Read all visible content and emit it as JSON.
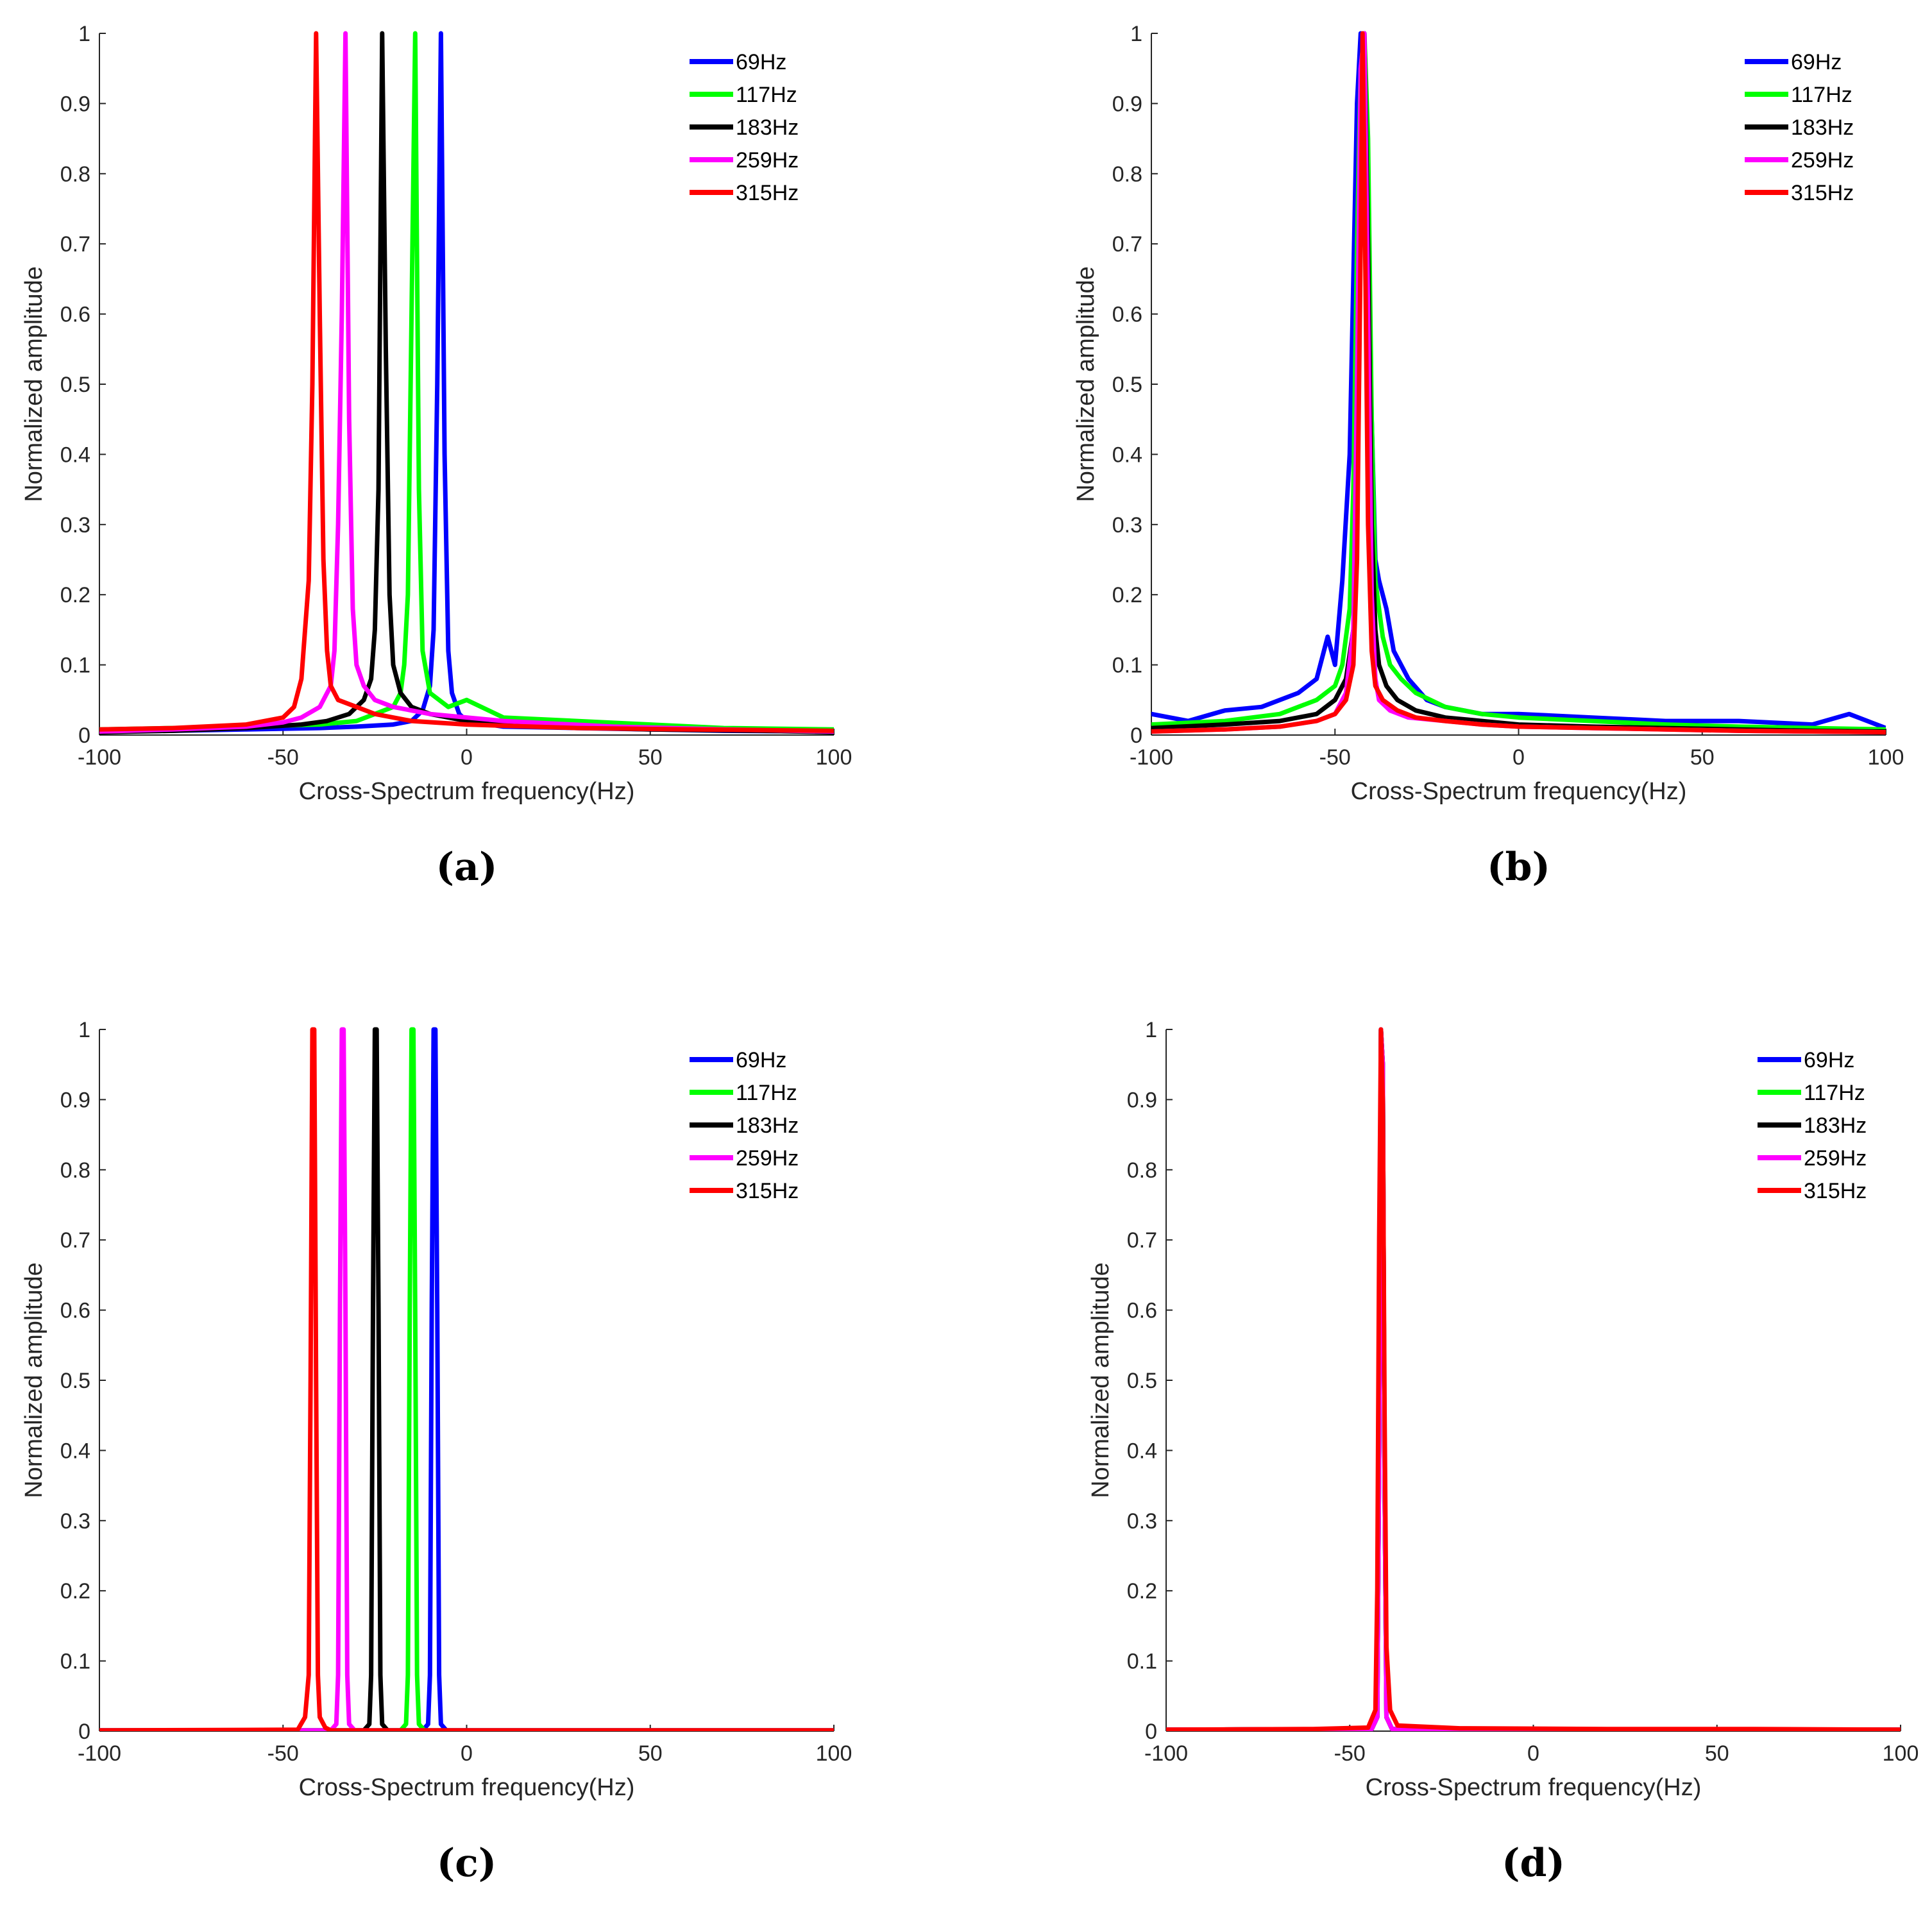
{
  "chart_data": [
    {
      "panel": "a",
      "caption": "(a)",
      "type": "line",
      "xlabel": "Cross-Spectrum frequency(Hz)",
      "ylabel": "Normalized amplitude",
      "xlim": [
        -100,
        100
      ],
      "ylim": [
        0,
        1
      ],
      "xticks": [
        -100,
        -50,
        0,
        50,
        100
      ],
      "xtick_labels": [
        "-100",
        "-50",
        "0",
        "50",
        "100"
      ],
      "yticks": [
        0,
        0.1,
        0.2,
        0.3,
        0.4,
        0.5,
        0.6,
        0.7,
        0.8,
        0.9,
        1
      ],
      "ytick_labels": [
        "0",
        "0.1",
        "0.2",
        "0.3",
        "0.4",
        "0.5",
        "0.6",
        "0.7",
        "0.8",
        "0.9",
        "1"
      ],
      "legend_position": "top-right",
      "series": [
        {
          "name": "69Hz",
          "color": "#0000ff",
          "x": [
            -100,
            -80,
            -60,
            -40,
            -30,
            -20,
            -15,
            -12,
            -10,
            -9,
            -8,
            -7,
            -6,
            -5,
            -4,
            -2,
            0,
            10,
            30,
            50,
            70,
            100
          ],
          "y": [
            0.005,
            0.006,
            0.008,
            0.01,
            0.012,
            0.015,
            0.02,
            0.035,
            0.07,
            0.15,
            0.5,
            1.0,
            0.4,
            0.12,
            0.06,
            0.03,
            0.02,
            0.012,
            0.01,
            0.008,
            0.006,
            0.005
          ]
        },
        {
          "name": "117Hz",
          "color": "#00ff00",
          "x": [
            -100,
            -80,
            -60,
            -40,
            -30,
            -25,
            -20,
            -18,
            -17,
            -16,
            -15,
            -14,
            -13,
            -12,
            -10,
            -5,
            0,
            10,
            30,
            50,
            70,
            100
          ],
          "y": [
            0.008,
            0.01,
            0.012,
            0.015,
            0.02,
            0.03,
            0.04,
            0.06,
            0.1,
            0.2,
            0.6,
            1.0,
            0.35,
            0.12,
            0.06,
            0.04,
            0.05,
            0.025,
            0.02,
            0.015,
            0.01,
            0.008
          ]
        },
        {
          "name": "183Hz",
          "color": "#000000",
          "x": [
            -100,
            -80,
            -60,
            -45,
            -38,
            -32,
            -28,
            -26,
            -25,
            -24,
            -23,
            -22,
            -21,
            -20,
            -18,
            -15,
            -10,
            0,
            20,
            50,
            80,
            100
          ],
          "y": [
            0.004,
            0.006,
            0.01,
            0.015,
            0.02,
            0.03,
            0.05,
            0.08,
            0.15,
            0.35,
            1.0,
            0.55,
            0.2,
            0.1,
            0.06,
            0.04,
            0.03,
            0.02,
            0.012,
            0.008,
            0.006,
            0.004
          ]
        },
        {
          "name": "259Hz",
          "color": "#ff00ff",
          "x": [
            -100,
            -80,
            -60,
            -50,
            -45,
            -40,
            -37,
            -36,
            -35,
            -34,
            -33,
            -32,
            -31,
            -30,
            -28,
            -25,
            -20,
            -10,
            10,
            40,
            70,
            100
          ],
          "y": [
            0.005,
            0.008,
            0.012,
            0.018,
            0.025,
            0.04,
            0.07,
            0.12,
            0.3,
            0.6,
            1.0,
            0.45,
            0.18,
            0.1,
            0.07,
            0.05,
            0.04,
            0.03,
            0.02,
            0.012,
            0.008,
            0.005
          ]
        },
        {
          "name": "315Hz",
          "color": "#ff0000",
          "x": [
            -100,
            -80,
            -60,
            -50,
            -47,
            -45,
            -44,
            -43,
            -42,
            -41,
            -40,
            -39,
            -38,
            -37,
            -35,
            -30,
            -25,
            -15,
            0,
            30,
            60,
            100
          ],
          "y": [
            0.008,
            0.01,
            0.015,
            0.025,
            0.04,
            0.08,
            0.15,
            0.22,
            0.5,
            1.0,
            0.6,
            0.25,
            0.12,
            0.07,
            0.05,
            0.04,
            0.03,
            0.02,
            0.015,
            0.01,
            0.008,
            0.006
          ]
        }
      ]
    },
    {
      "panel": "b",
      "caption": "(b)",
      "type": "line",
      "xlabel": "Cross-Spectrum frequency(Hz)",
      "ylabel": "Normalized amplitude",
      "xlim": [
        -100,
        100
      ],
      "ylim": [
        0,
        1
      ],
      "xticks": [
        -100,
        -50,
        0,
        50,
        100
      ],
      "xtick_labels": [
        "-100",
        "-50",
        "0",
        "50",
        "100"
      ],
      "yticks": [
        0,
        0.1,
        0.2,
        0.3,
        0.4,
        0.5,
        0.6,
        0.7,
        0.8,
        0.9,
        1
      ],
      "ytick_labels": [
        "0",
        "0.1",
        "0.2",
        "0.3",
        "0.4",
        "0.5",
        "0.6",
        "0.7",
        "0.8",
        "0.9",
        "1"
      ],
      "legend_position": "top-right",
      "series": [
        {
          "name": "69Hz",
          "color": "#0000ff",
          "x": [
            -100,
            -90,
            -80,
            -70,
            -60,
            -55,
            -52,
            -50,
            -48,
            -46,
            -45,
            -44,
            -43,
            -42,
            -41,
            -40,
            -39,
            -38,
            -36,
            -34,
            -32,
            -30,
            -25,
            -20,
            -10,
            0,
            20,
            40,
            60,
            80,
            90,
            100
          ],
          "y": [
            0.03,
            0.02,
            0.035,
            0.04,
            0.06,
            0.08,
            0.14,
            0.1,
            0.22,
            0.4,
            0.65,
            0.9,
            1.0,
            0.93,
            0.7,
            0.45,
            0.25,
            0.22,
            0.18,
            0.12,
            0.1,
            0.08,
            0.05,
            0.04,
            0.03,
            0.03,
            0.025,
            0.02,
            0.02,
            0.015,
            0.03,
            0.01
          ]
        },
        {
          "name": "117Hz",
          "color": "#00ff00",
          "x": [
            -100,
            -80,
            -65,
            -55,
            -50,
            -48,
            -46,
            -45,
            -44,
            -43,
            -42,
            -41,
            -40,
            -39,
            -38,
            -37,
            -35,
            -32,
            -28,
            -20,
            -10,
            0,
            20,
            40,
            60,
            80,
            100
          ],
          "y": [
            0.015,
            0.02,
            0.03,
            0.05,
            0.07,
            0.1,
            0.18,
            0.35,
            0.7,
            0.95,
            1.0,
            0.85,
            0.45,
            0.22,
            0.18,
            0.14,
            0.1,
            0.08,
            0.06,
            0.04,
            0.03,
            0.025,
            0.02,
            0.015,
            0.012,
            0.01,
            0.008
          ]
        },
        {
          "name": "183Hz",
          "color": "#000000",
          "x": [
            -100,
            -80,
            -65,
            -55,
            -50,
            -47,
            -45,
            -44,
            -43,
            -42,
            -41,
            -40,
            -39,
            -38,
            -36,
            -33,
            -28,
            -20,
            -10,
            0,
            20,
            40,
            60,
            80,
            100
          ],
          "y": [
            0.01,
            0.015,
            0.02,
            0.03,
            0.05,
            0.08,
            0.15,
            0.4,
            0.9,
            1.0,
            0.7,
            0.3,
            0.15,
            0.1,
            0.07,
            0.05,
            0.035,
            0.025,
            0.02,
            0.015,
            0.012,
            0.01,
            0.008,
            0.006,
            0.005
          ]
        },
        {
          "name": "259Hz",
          "color": "#ff00ff",
          "x": [
            -100,
            -80,
            -65,
            -55,
            -50,
            -47,
            -45,
            -44,
            -43,
            -42,
            -41,
            -40,
            -39,
            -38,
            -35,
            -30,
            -20,
            -10,
            0,
            20,
            40,
            60,
            80,
            100
          ],
          "y": [
            0.005,
            0.008,
            0.012,
            0.02,
            0.03,
            0.06,
            0.15,
            0.5,
            0.95,
            1.0,
            0.6,
            0.2,
            0.08,
            0.05,
            0.035,
            0.025,
            0.02,
            0.015,
            0.012,
            0.01,
            0.008,
            0.006,
            0.005,
            0.004
          ]
        },
        {
          "name": "315Hz",
          "color": "#ff0000",
          "x": [
            -100,
            -80,
            -65,
            -55,
            -50,
            -47,
            -45,
            -44,
            -43,
            -42.5,
            -42,
            -41,
            -40,
            -39,
            -37,
            -33,
            -28,
            -20,
            -10,
            0,
            20,
            40,
            60,
            80,
            100
          ],
          "y": [
            0.005,
            0.008,
            0.012,
            0.02,
            0.03,
            0.05,
            0.1,
            0.25,
            0.7,
            1.0,
            0.8,
            0.3,
            0.12,
            0.07,
            0.05,
            0.035,
            0.025,
            0.02,
            0.015,
            0.012,
            0.01,
            0.008,
            0.006,
            0.005,
            0.004
          ]
        }
      ]
    },
    {
      "panel": "c",
      "caption": "(c)",
      "type": "line",
      "xlabel": "Cross-Spectrum frequency(Hz)",
      "ylabel": "Normalized amplitude",
      "xlim": [
        -100,
        100
      ],
      "ylim": [
        0,
        1
      ],
      "xticks": [
        -100,
        -50,
        0,
        50,
        100
      ],
      "xtick_labels": [
        "-100",
        "-50",
        "0",
        "50",
        "100"
      ],
      "yticks": [
        0,
        0.1,
        0.2,
        0.3,
        0.4,
        0.5,
        0.6,
        0.7,
        0.8,
        0.9,
        1
      ],
      "ytick_labels": [
        "0",
        "0.1",
        "0.2",
        "0.3",
        "0.4",
        "0.5",
        "0.6",
        "0.7",
        "0.8",
        "0.9",
        "1"
      ],
      "legend_position": "top-right",
      "series": [
        {
          "name": "69Hz",
          "color": "#0000ff",
          "x": [
            -100,
            -12,
            -10.5,
            -10,
            -9.5,
            -9,
            -8.5,
            -8,
            -7.5,
            -7,
            -5.5,
            100
          ],
          "y": [
            0.001,
            0.001,
            0.01,
            0.08,
            0.6,
            1.0,
            1.0,
            0.6,
            0.08,
            0.01,
            0.001,
            0.001
          ]
        },
        {
          "name": "117Hz",
          "color": "#00ff00",
          "x": [
            -100,
            -18,
            -16.5,
            -16,
            -15.5,
            -15,
            -14.5,
            -14,
            -13.5,
            -13,
            -11.5,
            100
          ],
          "y": [
            0.001,
            0.001,
            0.01,
            0.08,
            0.6,
            1.0,
            1.0,
            0.6,
            0.08,
            0.01,
            0.001,
            0.001
          ]
        },
        {
          "name": "183Hz",
          "color": "#000000",
          "x": [
            -100,
            -28,
            -26.5,
            -26,
            -25.5,
            -25,
            -24.5,
            -24,
            -23.5,
            -23,
            -21.5,
            100
          ],
          "y": [
            0.001,
            0.001,
            0.01,
            0.08,
            0.6,
            1.0,
            1.0,
            0.6,
            0.08,
            0.01,
            0.001,
            0.001
          ]
        },
        {
          "name": "259Hz",
          "color": "#ff00ff",
          "x": [
            -100,
            -37,
            -35.5,
            -35,
            -34.5,
            -34,
            -33.5,
            -33,
            -32.5,
            -32,
            -30.5,
            100
          ],
          "y": [
            0.001,
            0.001,
            0.01,
            0.08,
            0.6,
            1.0,
            1.0,
            0.6,
            0.08,
            0.01,
            0.001,
            0.001
          ]
        },
        {
          "name": "315Hz",
          "color": "#ff0000",
          "x": [
            -100,
            -46,
            -44,
            -43,
            -42.5,
            -42,
            -41.5,
            -41,
            -40.5,
            -40,
            -38.5,
            -37,
            100
          ],
          "y": [
            0.001,
            0.002,
            0.02,
            0.08,
            0.5,
            1.0,
            1.0,
            0.5,
            0.08,
            0.02,
            0.005,
            0.001,
            0.001
          ]
        }
      ]
    },
    {
      "panel": "d",
      "caption": "(d)",
      "type": "line",
      "xlabel": "Cross-Spectrum frequency(Hz)",
      "ylabel": "Normalized amplitude",
      "xlim": [
        -100,
        100
      ],
      "ylim": [
        0,
        1
      ],
      "xticks": [
        -100,
        -50,
        0,
        50,
        100
      ],
      "xtick_labels": [
        "-100",
        "-50",
        "0",
        "50",
        "100"
      ],
      "yticks": [
        0,
        0.1,
        0.2,
        0.3,
        0.4,
        0.5,
        0.6,
        0.7,
        0.8,
        0.9,
        1
      ],
      "ytick_labels": [
        "0",
        "0.1",
        "0.2",
        "0.3",
        "0.4",
        "0.5",
        "0.6",
        "0.7",
        "0.8",
        "0.9",
        "1"
      ],
      "legend_position": "top-right",
      "series": [
        {
          "name": "69Hz",
          "color": "#0000ff",
          "x": [
            -100,
            -44,
            -42.5,
            -42,
            -41.5,
            -41,
            -40.5,
            -40,
            -38.5,
            100
          ],
          "y": [
            0.002,
            0.003,
            0.02,
            0.4,
            1.0,
            0.95,
            0.35,
            0.02,
            0.003,
            0.002
          ]
        },
        {
          "name": "117Hz",
          "color": "#00ff00",
          "x": [
            -100,
            -44,
            -42.5,
            -42,
            -41.5,
            -41,
            -40.5,
            -40,
            -38.5,
            100
          ],
          "y": [
            0.002,
            0.003,
            0.02,
            0.4,
            1.0,
            0.95,
            0.35,
            0.02,
            0.003,
            0.002
          ]
        },
        {
          "name": "183Hz",
          "color": "#000000",
          "x": [
            -100,
            -44,
            -42.5,
            -42,
            -41.5,
            -41,
            -40.5,
            -40,
            -38.5,
            100
          ],
          "y": [
            0.002,
            0.003,
            0.02,
            0.4,
            1.0,
            0.95,
            0.35,
            0.02,
            0.003,
            0.002
          ]
        },
        {
          "name": "259Hz",
          "color": "#ff00ff",
          "x": [
            -100,
            -44,
            -42.5,
            -42,
            -41.5,
            -41,
            -40.5,
            -40,
            -38.5,
            100
          ],
          "y": [
            0.002,
            0.003,
            0.02,
            0.4,
            1.0,
            0.95,
            0.35,
            0.02,
            0.003,
            0.002
          ]
        },
        {
          "name": "315Hz",
          "color": "#ff0000",
          "x": [
            -100,
            -60,
            -45,
            -43,
            -42.5,
            -42,
            -41.5,
            -41,
            -40.5,
            -40,
            -39,
            -37,
            -20,
            20,
            60,
            100
          ],
          "y": [
            0.002,
            0.003,
            0.005,
            0.03,
            0.2,
            0.7,
            1.0,
            0.9,
            0.45,
            0.12,
            0.03,
            0.008,
            0.004,
            0.003,
            0.003,
            0.002
          ]
        }
      ]
    }
  ]
}
